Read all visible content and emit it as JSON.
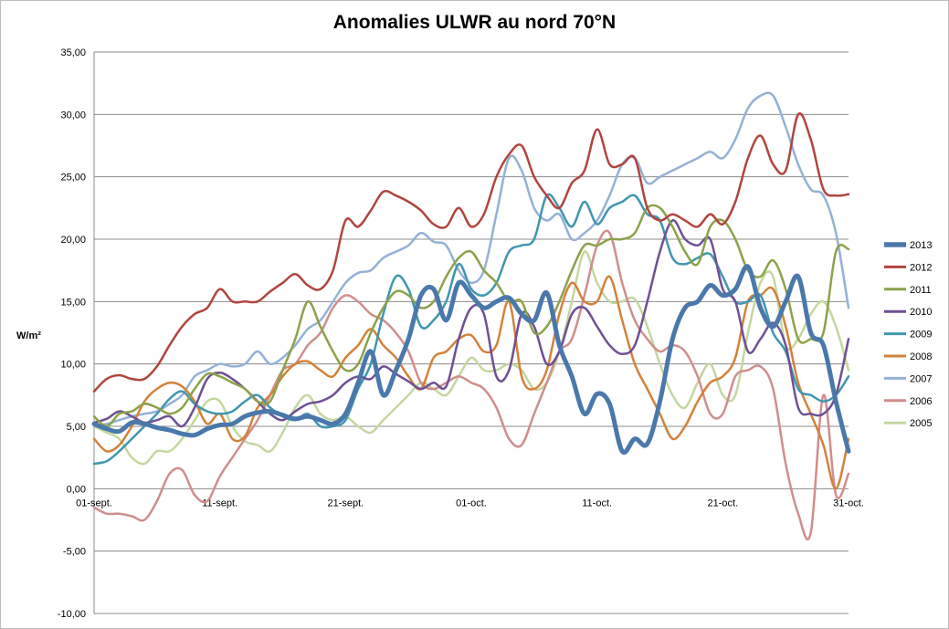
{
  "chart_data": {
    "type": "line",
    "title": "Anomalies ULWR au nord 70°N",
    "ylabel": "W/m²",
    "xlabel": "",
    "ylim": [
      -10,
      35
    ],
    "y_ticks": [
      "-10,00",
      "-5,00",
      "0,00",
      "5,00",
      "10,00",
      "15,00",
      "20,00",
      "25,00",
      "30,00",
      "35,00"
    ],
    "x_ticks": [
      {
        "day": 0,
        "label": "01-sept."
      },
      {
        "day": 10,
        "label": "11-sept."
      },
      {
        "day": 20,
        "label": "21-sept."
      },
      {
        "day": 30,
        "label": "01-oct."
      },
      {
        "day": 40,
        "label": "11-oct."
      },
      {
        "day": 50,
        "label": "21-oct."
      },
      {
        "day": 60,
        "label": "31-oct."
      }
    ],
    "grid": "horizontal",
    "legend_position": "right",
    "series": [
      {
        "name": "2013",
        "color": "#4a78ab",
        "width": 5,
        "values": [
          5.2,
          4.8,
          4.6,
          5.3,
          5.2,
          4.9,
          4.7,
          4.4,
          4.3,
          4.8,
          5.1,
          5.2,
          5.8,
          6.1,
          6.2,
          5.9,
          5.6,
          5.8,
          5.5,
          5.2,
          6.0,
          8.5,
          11.0,
          7.5,
          9.5,
          12.0,
          15.5,
          16.0,
          13.5,
          16.5,
          15.5,
          14.5,
          15.0,
          15.3,
          14.0,
          13.5,
          15.7,
          11.5,
          9.0,
          6.0,
          7.6,
          6.8,
          3.0,
          4.0,
          3.6,
          7.0,
          12.0,
          14.5,
          15.0,
          16.3,
          15.5,
          16.0,
          17.8,
          14.5,
          13.0,
          15.0,
          17.0,
          12.5,
          11.5,
          7.0,
          3.0
        ]
      },
      {
        "name": "2012",
        "color": "#b0453f",
        "width": 2.5,
        "values": [
          7.8,
          8.8,
          9.1,
          8.8,
          8.8,
          9.8,
          11.5,
          13.0,
          14.0,
          14.5,
          16.0,
          15.0,
          15.0,
          15.0,
          15.8,
          16.5,
          17.2,
          16.3,
          16.0,
          17.5,
          21.5,
          21.0,
          22.3,
          23.8,
          23.5,
          23.0,
          22.3,
          21.2,
          21.0,
          22.5,
          21.0,
          22.0,
          25.0,
          26.8,
          27.5,
          25.0,
          23.5,
          22.5,
          24.5,
          25.5,
          28.8,
          26.0,
          26.0,
          26.5,
          22.5,
          21.5,
          22.0,
          21.5,
          21.0,
          22.0,
          21.2,
          23.0,
          26.5,
          28.3,
          26.0,
          25.5,
          30.0,
          28.0,
          24.0,
          23.5,
          23.6
        ]
      },
      {
        "name": "2011",
        "color": "#8ba24b",
        "width": 2.5,
        "values": [
          5.8,
          5.0,
          6.0,
          6.2,
          6.8,
          6.5,
          6.0,
          6.5,
          8.0,
          9.2,
          9.0,
          8.5,
          8.0,
          7.0,
          7.0,
          9.5,
          12.0,
          15.0,
          13.0,
          11.0,
          9.5,
          10.0,
          12.5,
          14.5,
          15.8,
          15.5,
          14.5,
          15.0,
          17.0,
          18.5,
          19.0,
          17.5,
          16.5,
          15.0,
          15.0,
          12.5,
          13.0,
          15.0,
          17.5,
          19.5,
          19.5,
          20.0,
          20.0,
          20.5,
          22.5,
          22.5,
          21.0,
          19.0,
          18.0,
          21.0,
          21.5,
          20.0,
          17.5,
          17.0,
          18.3,
          16.0,
          12.0,
          12.0,
          12.5,
          19.0,
          19.2
        ]
      },
      {
        "name": "2010",
        "color": "#6e5094",
        "width": 2.5,
        "values": [
          5.3,
          5.6,
          6.2,
          5.8,
          5.3,
          5.5,
          5.8,
          5.0,
          6.5,
          8.8,
          9.3,
          8.8,
          8.0,
          7.0,
          6.0,
          5.5,
          6.2,
          6.8,
          7.0,
          7.5,
          8.5,
          9.0,
          8.8,
          9.8,
          9.2,
          8.6,
          8.0,
          8.5,
          8.2,
          12.0,
          14.5,
          14.0,
          9.0,
          9.5,
          14.0,
          13.0,
          10.0,
          11.0,
          14.0,
          14.5,
          13.0,
          11.5,
          10.8,
          11.5,
          15.0,
          19.0,
          21.5,
          20.0,
          19.5,
          20.0,
          16.0,
          15.0,
          11.0,
          12.0,
          13.3,
          11.5,
          6.5,
          6.0,
          6.0,
          7.5,
          12.0
        ]
      },
      {
        "name": "2009",
        "color": "#4196ae",
        "width": 2.5,
        "values": [
          2.0,
          2.2,
          3.0,
          4.0,
          5.0,
          6.0,
          7.2,
          7.8,
          6.8,
          6.2,
          6.0,
          6.2,
          7.0,
          7.5,
          6.5,
          5.8,
          5.5,
          6.0,
          5.0,
          5.0,
          5.5,
          8.0,
          10.0,
          14.0,
          17.0,
          16.0,
          13.0,
          13.5,
          15.0,
          18.0,
          16.0,
          15.5,
          16.5,
          19.0,
          19.5,
          20.0,
          23.5,
          22.5,
          21.0,
          23.0,
          21.2,
          22.5,
          23.0,
          23.5,
          22.0,
          21.5,
          18.5,
          18.0,
          18.5,
          18.8,
          17.0,
          15.0,
          15.0,
          15.5,
          12.5,
          11.0,
          8.0,
          7.5,
          7.0,
          7.5,
          9.0
        ]
      },
      {
        "name": "2008",
        "color": "#d3823b",
        "width": 2.5,
        "values": [
          4.0,
          3.0,
          3.5,
          5.0,
          7.0,
          8.0,
          8.5,
          8.2,
          7.0,
          5.2,
          6.0,
          4.0,
          4.2,
          6.5,
          7.5,
          9.0,
          10.0,
          10.2,
          9.5,
          9.0,
          10.5,
          11.5,
          12.8,
          11.5,
          10.5,
          9.0,
          8.0,
          10.5,
          11.0,
          12.0,
          12.3,
          11.0,
          11.5,
          15.0,
          9.0,
          8.0,
          9.5,
          14.0,
          16.5,
          15.0,
          15.0,
          17.0,
          13.5,
          10.0,
          8.0,
          6.0,
          4.0,
          5.0,
          7.0,
          8.5,
          9.0,
          10.5,
          15.0,
          15.5,
          16.0,
          13.0,
          8.5,
          6.0,
          3.5,
          0.0,
          4.0
        ]
      },
      {
        "name": "2007",
        "color": "#94b1d6",
        "width": 2.5,
        "values": [
          5.0,
          5.2,
          5.5,
          5.8,
          6.0,
          6.2,
          6.8,
          7.5,
          9.0,
          9.5,
          10.0,
          9.8,
          10.0,
          11.0,
          10.0,
          10.5,
          11.5,
          12.8,
          13.5,
          15.0,
          16.5,
          17.3,
          17.5,
          18.5,
          19.0,
          19.5,
          20.5,
          19.8,
          19.5,
          17.5,
          16.5,
          17.5,
          22.0,
          26.5,
          25.5,
          22.5,
          21.5,
          22.0,
          20.0,
          20.5,
          21.5,
          23.5,
          26.0,
          26.5,
          24.5,
          25.0,
          25.5,
          26.0,
          26.5,
          27.0,
          26.5,
          28.0,
          30.5,
          31.5,
          31.5,
          29.0,
          26.0,
          24.0,
          23.5,
          20.5,
          14.5
        ]
      },
      {
        "name": "2006",
        "color": "#cf8e8d",
        "width": 2.5,
        "values": [
          -1.5,
          -2.0,
          -2.0,
          -2.2,
          -2.5,
          -1.0,
          1.2,
          1.5,
          -0.5,
          -1.0,
          1.0,
          2.5,
          4.0,
          5.5,
          7.5,
          9.5,
          10.0,
          11.5,
          12.5,
          14.5,
          15.5,
          15.0,
          14.0,
          13.5,
          12.5,
          11.0,
          8.5,
          8.0,
          8.5,
          9.0,
          8.5,
          8.0,
          6.5,
          4.0,
          3.5,
          6.0,
          8.5,
          11.0,
          12.0,
          15.5,
          19.5,
          20.5,
          16.5,
          13.5,
          12.0,
          11.0,
          11.5,
          11.0,
          9.0,
          6.0,
          6.0,
          9.0,
          9.5,
          9.8,
          8.0,
          2.0,
          -2.0,
          -3.5,
          7.5,
          -0.5,
          1.2
        ]
      },
      {
        "name": "2005",
        "color": "#c4d7a0",
        "width": 2.5,
        "values": [
          5.0,
          4.5,
          4.0,
          2.5,
          2.0,
          3.0,
          3.0,
          4.0,
          5.5,
          7.0,
          7.0,
          5.0,
          3.8,
          3.5,
          3.0,
          4.5,
          6.5,
          7.5,
          6.0,
          5.5,
          5.8,
          5.0,
          4.5,
          5.5,
          6.5,
          7.5,
          8.5,
          8.0,
          7.5,
          9.0,
          10.5,
          9.5,
          9.5,
          10.0,
          9.5,
          8.0,
          8.5,
          11.0,
          15.0,
          19.0,
          16.5,
          15.0,
          15.0,
          15.2,
          13.0,
          10.0,
          7.5,
          6.5,
          8.5,
          10.0,
          7.5,
          7.5,
          12.5,
          16.5,
          17.0,
          11.5,
          12.0,
          14.0,
          15.0,
          13.0,
          9.5
        ]
      }
    ]
  }
}
